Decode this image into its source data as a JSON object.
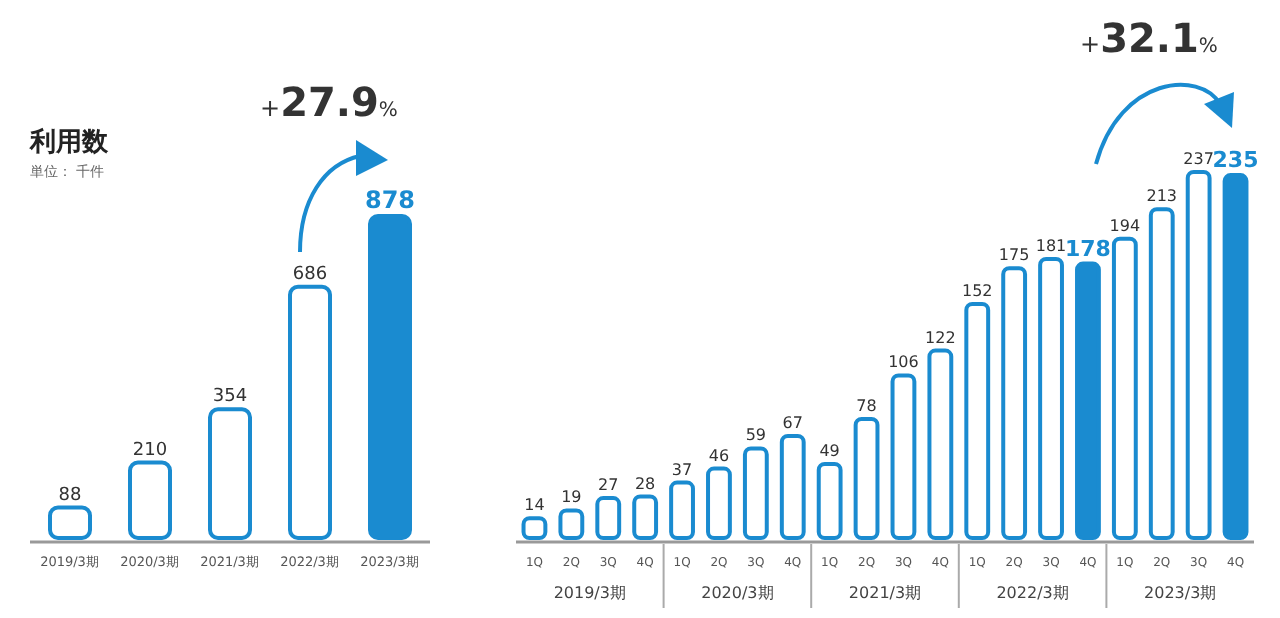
{
  "chart_data": [
    {
      "type": "bar",
      "title": "利用数",
      "subtitle": "単位： 千件",
      "categories": [
        "2019/3期",
        "2020/3期",
        "2021/3期",
        "2022/3期",
        "2023/3期"
      ],
      "values": [
        88,
        210,
        354,
        686,
        878
      ],
      "color": "#1a8bd0",
      "colors": [
        "#ffffff",
        "#ffffff",
        "#ffffff",
        "#ffffff",
        "#1a8bd0"
      ],
      "data_labels": true,
      "annotations": [
        "+27.9%"
      ]
    },
    {
      "type": "bar",
      "categories": [
        "1Q",
        "2Q",
        "3Q",
        "4Q",
        "1Q",
        "2Q",
        "3Q",
        "4Q",
        "1Q",
        "2Q",
        "3Q",
        "4Q",
        "1Q",
        "2Q",
        "3Q",
        "4Q",
        "1Q",
        "2Q",
        "3Q",
        "4Q"
      ],
      "values": [
        14,
        19,
        27,
        28,
        37,
        46,
        59,
        67,
        49,
        78,
        106,
        122,
        152,
        175,
        181,
        178,
        194,
        213,
        237,
        235
      ],
      "color": "#1a8bd0",
      "colors": [
        "#ffffff",
        "#ffffff",
        "#ffffff",
        "#ffffff",
        "#ffffff",
        "#ffffff",
        "#ffffff",
        "#ffffff",
        "#ffffff",
        "#ffffff",
        "#ffffff",
        "#ffffff",
        "#ffffff",
        "#ffffff",
        "#ffffff",
        "#1a8bd0",
        "#ffffff",
        "#ffffff",
        "#ffffff",
        "#1a8bd0"
      ],
      "data_labels": true,
      "annotations": [
        "2019/3期",
        "2020/3期",
        "2021/3期",
        "2022/3期",
        "2023/3期",
        "+32.1%"
      ]
    }
  ]
}
